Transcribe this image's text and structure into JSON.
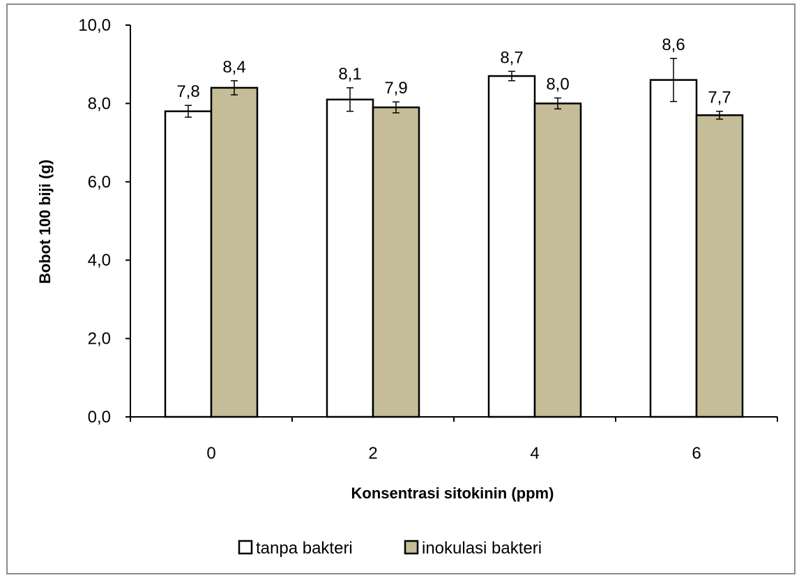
{
  "chart_data": {
    "type": "bar",
    "title": "",
    "xlabel": "Konsentrasi sitokinin (ppm)",
    "ylabel": "Bobot 100 biji (g)",
    "categories": [
      "0",
      "2",
      "4",
      "6"
    ],
    "ylim": [
      0,
      10
    ],
    "yticks": [
      0,
      2,
      4,
      6,
      8,
      10
    ],
    "ytick_labels": [
      "0,0",
      "2,0",
      "4,0",
      "6,0",
      "8,0",
      "10,0"
    ],
    "grid": false,
    "legend_position": "bottom",
    "series": [
      {
        "name": "tanpa bakteri",
        "color": "#ffffff",
        "values": [
          7.8,
          8.1,
          8.7,
          8.6
        ],
        "labels": [
          "7,8",
          "8,1",
          "8,7",
          "8,6"
        ],
        "errors": [
          0.15,
          0.3,
          0.12,
          0.55
        ]
      },
      {
        "name": "inokulasi bakteri",
        "color": "#c4bd97",
        "values": [
          8.4,
          7.9,
          8.0,
          7.7
        ],
        "labels": [
          "8,4",
          "7,9",
          "8,0",
          "7,7"
        ],
        "errors": [
          0.18,
          0.14,
          0.14,
          0.1
        ]
      }
    ]
  }
}
